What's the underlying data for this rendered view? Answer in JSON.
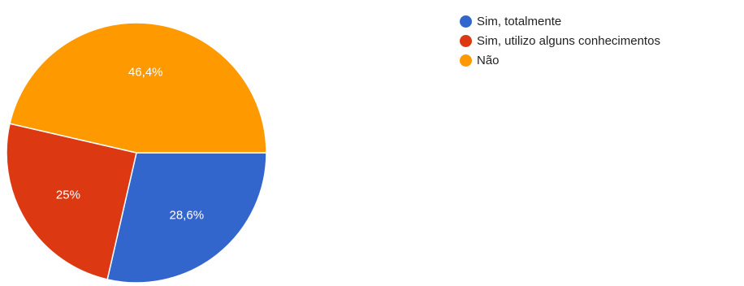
{
  "chart_data": {
    "type": "pie",
    "categories": [
      "Sim, totalmente",
      "Sim, utilizo alguns conhecimentos",
      "Não"
    ],
    "values": [
      28.6,
      25.0,
      46.4
    ],
    "data_labels": [
      "28,6%",
      "25%",
      "46,4%"
    ],
    "colors": [
      "#3366cc",
      "#dc3912",
      "#ff9900"
    ],
    "legend_position": "right"
  }
}
